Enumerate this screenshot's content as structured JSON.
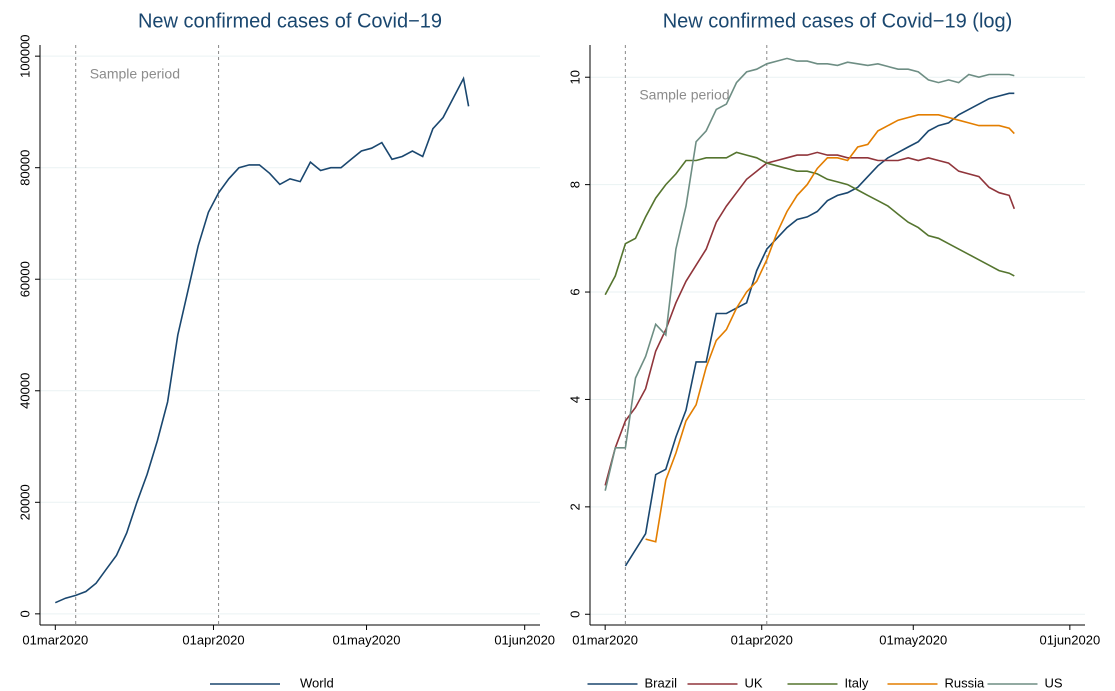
{
  "chart_data": [
    {
      "type": "line",
      "title": "New confirmed cases of Covid−19",
      "annotation": "Sample period",
      "sample_period": [
        "2020-03-05",
        "2020-04-02"
      ],
      "x": [
        "2020-03-01",
        "2020-03-03",
        "2020-03-05",
        "2020-03-07",
        "2020-03-09",
        "2020-03-11",
        "2020-03-13",
        "2020-03-15",
        "2020-03-17",
        "2020-03-19",
        "2020-03-21",
        "2020-03-23",
        "2020-03-25",
        "2020-03-27",
        "2020-03-29",
        "2020-03-31",
        "2020-04-02",
        "2020-04-04",
        "2020-04-06",
        "2020-04-08",
        "2020-04-10",
        "2020-04-12",
        "2020-04-14",
        "2020-04-16",
        "2020-04-18",
        "2020-04-20",
        "2020-04-22",
        "2020-04-24",
        "2020-04-26",
        "2020-04-28",
        "2020-04-30",
        "2020-05-02",
        "2020-05-04",
        "2020-05-06",
        "2020-05-08",
        "2020-05-10",
        "2020-05-12",
        "2020-05-14",
        "2020-05-16",
        "2020-05-18",
        "2020-05-20",
        "2020-05-21"
      ],
      "series": [
        {
          "name": "World",
          "color": "#1a476f",
          "values": [
            2000,
            2800,
            3300,
            4000,
            5500,
            8000,
            10500,
            14500,
            20000,
            25000,
            31000,
            38000,
            50000,
            58000,
            66000,
            72000,
            75500,
            78000,
            80000,
            80500,
            80500,
            79000,
            77000,
            78000,
            77500,
            81000,
            79500,
            80000,
            80000,
            81500,
            83000,
            83500,
            84500,
            81500,
            82000,
            83000,
            82000,
            87000,
            89000,
            92500,
            96000,
            91000
          ]
        }
      ],
      "xlim": [
        "2020-02-27",
        "2020-06-04"
      ],
      "xticks": [
        {
          "value": "2020-03-01",
          "label": "01mar2020"
        },
        {
          "value": "2020-04-01",
          "label": "01apr2020"
        },
        {
          "value": "2020-05-01",
          "label": "01may2020"
        },
        {
          "value": "2020-06-01",
          "label": "01jun2020"
        }
      ],
      "ylim": [
        -2000,
        102000
      ],
      "yticks": [
        0,
        20000,
        40000,
        60000,
        80000,
        100000
      ],
      "grid": true,
      "legend": "bottom"
    },
    {
      "type": "line",
      "title": "New confirmed cases of Covid−19 (log)",
      "annotation": "Sample period",
      "sample_period": [
        "2020-03-05",
        "2020-04-02"
      ],
      "x": [
        "2020-03-01",
        "2020-03-03",
        "2020-03-05",
        "2020-03-07",
        "2020-03-09",
        "2020-03-11",
        "2020-03-13",
        "2020-03-15",
        "2020-03-17",
        "2020-03-19",
        "2020-03-21",
        "2020-03-23",
        "2020-03-25",
        "2020-03-27",
        "2020-03-29",
        "2020-03-31",
        "2020-04-02",
        "2020-04-04",
        "2020-04-06",
        "2020-04-08",
        "2020-04-10",
        "2020-04-12",
        "2020-04-14",
        "2020-04-16",
        "2020-04-18",
        "2020-04-20",
        "2020-04-22",
        "2020-04-24",
        "2020-04-26",
        "2020-04-28",
        "2020-04-30",
        "2020-05-02",
        "2020-05-04",
        "2020-05-06",
        "2020-05-08",
        "2020-05-10",
        "2020-05-12",
        "2020-05-14",
        "2020-05-16",
        "2020-05-18",
        "2020-05-20",
        "2020-05-21"
      ],
      "series": [
        {
          "name": "Brazil",
          "color": "#1a476f",
          "values": [
            null,
            null,
            0.9,
            1.2,
            1.5,
            2.6,
            2.7,
            3.3,
            3.8,
            4.7,
            4.7,
            5.6,
            5.6,
            5.7,
            5.8,
            6.4,
            6.8,
            7.0,
            7.2,
            7.35,
            7.4,
            7.5,
            7.7,
            7.8,
            7.85,
            7.95,
            8.15,
            8.35,
            8.5,
            8.6,
            8.7,
            8.8,
            9.0,
            9.1,
            9.15,
            9.3,
            9.4,
            9.5,
            9.6,
            9.65,
            9.7,
            9.7
          ]
        },
        {
          "name": "UK",
          "color": "#90353b",
          "values": [
            2.4,
            3.1,
            3.6,
            3.85,
            4.2,
            4.9,
            5.3,
            5.8,
            6.2,
            6.5,
            6.8,
            7.3,
            7.6,
            7.85,
            8.1,
            8.25,
            8.4,
            8.45,
            8.5,
            8.55,
            8.55,
            8.6,
            8.55,
            8.55,
            8.5,
            8.5,
            8.5,
            8.45,
            8.45,
            8.45,
            8.5,
            8.45,
            8.5,
            8.45,
            8.4,
            8.25,
            8.2,
            8.15,
            7.95,
            7.85,
            7.8,
            7.55
          ]
        },
        {
          "name": "Italy",
          "color": "#55752f",
          "values": [
            5.95,
            6.3,
            6.9,
            7.0,
            7.4,
            7.75,
            8.0,
            8.2,
            8.45,
            8.45,
            8.5,
            8.5,
            8.5,
            8.6,
            8.55,
            8.5,
            8.4,
            8.35,
            8.3,
            8.25,
            8.25,
            8.2,
            8.1,
            8.05,
            8.0,
            7.9,
            7.8,
            7.7,
            7.6,
            7.45,
            7.3,
            7.2,
            7.05,
            7.0,
            6.9,
            6.8,
            6.7,
            6.6,
            6.5,
            6.4,
            6.35,
            6.3
          ]
        },
        {
          "name": "Russia",
          "color": "#e37e00",
          "values": [
            null,
            null,
            null,
            null,
            1.4,
            1.35,
            2.5,
            3.0,
            3.6,
            3.9,
            4.6,
            5.1,
            5.3,
            5.7,
            6.0,
            6.2,
            6.6,
            7.1,
            7.5,
            7.8,
            8.0,
            8.3,
            8.5,
            8.5,
            8.45,
            8.7,
            8.75,
            9.0,
            9.1,
            9.2,
            9.25,
            9.3,
            9.3,
            9.3,
            9.25,
            9.2,
            9.15,
            9.1,
            9.1,
            9.1,
            9.05,
            8.95
          ]
        },
        {
          "name": "US",
          "color": "#6e8e84",
          "values": [
            2.3,
            3.1,
            3.1,
            4.4,
            4.8,
            5.4,
            5.2,
            6.8,
            7.6,
            8.8,
            9.0,
            9.4,
            9.5,
            9.9,
            10.1,
            10.15,
            10.25,
            10.3,
            10.35,
            10.3,
            10.3,
            10.25,
            10.25,
            10.22,
            10.28,
            10.25,
            10.22,
            10.25,
            10.2,
            10.15,
            10.15,
            10.1,
            9.95,
            9.9,
            9.95,
            9.9,
            10.05,
            10.0,
            10.05,
            10.05,
            10.05,
            10.03
          ]
        }
      ],
      "xlim": [
        "2020-02-27",
        "2020-06-04"
      ],
      "xticks": [
        {
          "value": "2020-03-01",
          "label": "01mar2020"
        },
        {
          "value": "2020-04-01",
          "label": "01apr2020"
        },
        {
          "value": "2020-05-01",
          "label": "01may2020"
        },
        {
          "value": "2020-06-01",
          "label": "01jun2020"
        }
      ],
      "ylim": [
        -0.2,
        10.6
      ],
      "yticks": [
        0,
        2,
        4,
        6,
        8,
        10
      ],
      "grid": true,
      "legend": "bottom"
    }
  ]
}
